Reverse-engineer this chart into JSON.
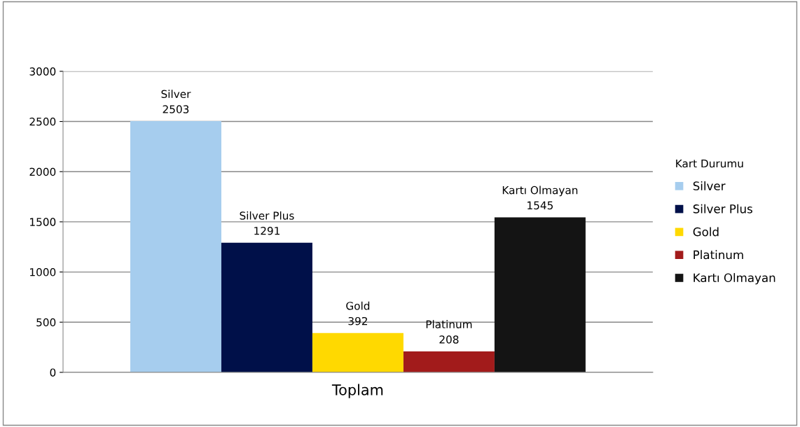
{
  "chart_data": {
    "type": "bar",
    "categories": [
      "Toplam"
    ],
    "legend_title": "Kart Durumu",
    "series": [
      {
        "name": "Silver",
        "color": "#a6cdee",
        "values": [
          2503
        ]
      },
      {
        "name": "Silver Plus",
        "color": "#001049",
        "values": [
          1291
        ]
      },
      {
        "name": "Gold",
        "color": "#ffd900",
        "values": [
          392
        ]
      },
      {
        "name": "Platinum",
        "color": "#a21b1b",
        "values": [
          208
        ]
      },
      {
        "name": "Kartı Olmayan",
        "color": "#141414",
        "values": [
          1545
        ]
      }
    ],
    "ylim": [
      0,
      3000
    ],
    "yticks": [
      0,
      500,
      1000,
      1500,
      2000,
      2500,
      3000
    ],
    "grid": "y",
    "legend": "right",
    "data_labels": true
  }
}
